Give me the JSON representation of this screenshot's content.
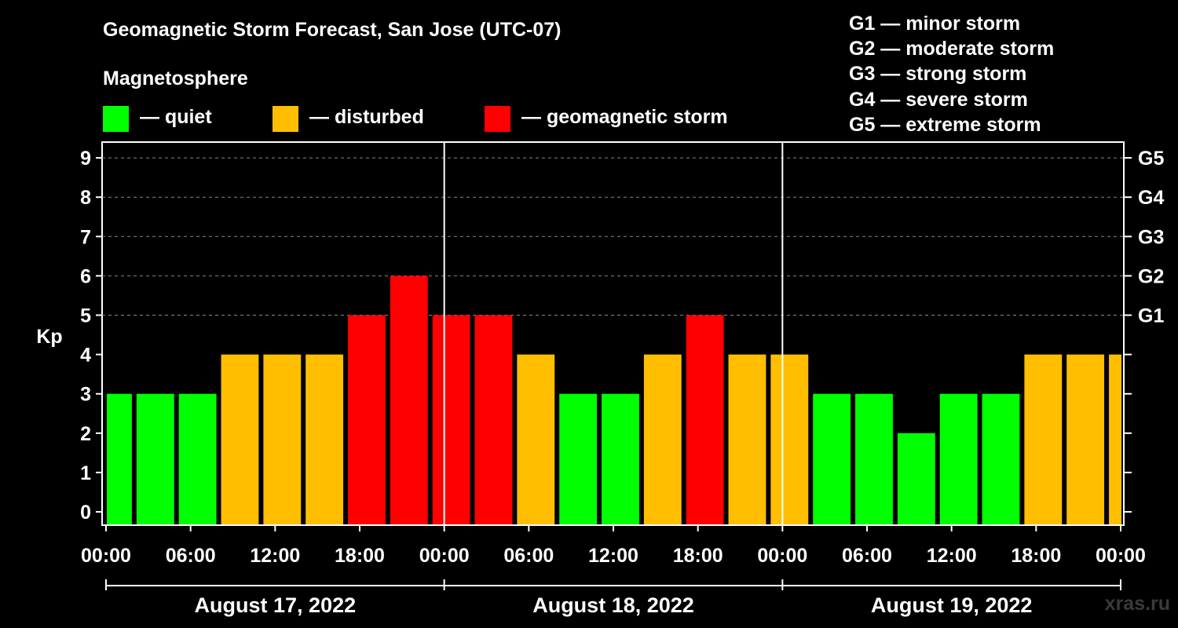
{
  "title": "Geomagnetic Storm Forecast, San Jose (UTC-07)",
  "subtitle": "Magnetosphere",
  "legend": [
    {
      "label": "— quiet",
      "color": "#00ff00"
    },
    {
      "label": "— disturbed",
      "color": "#ffbf00"
    },
    {
      "label": "— geomagnetic storm",
      "color": "#ff0000"
    }
  ],
  "storm_scale": [
    "G1 — minor storm",
    "G2 — moderate storm",
    "G3 — strong storm",
    "G4 — severe storm",
    "G5 — extreme storm"
  ],
  "watermark": "xras.ru",
  "colors": {
    "quiet": "#00ff00",
    "disturbed": "#ffbf00",
    "storm": "#ff0000",
    "background": "#000000",
    "axis": "#ffffff"
  },
  "chart_data": {
    "type": "bar",
    "ylabel": "Kp",
    "ylim": [
      0,
      9
    ],
    "y_ticks": [
      "0",
      "1",
      "2",
      "3",
      "4",
      "5",
      "6",
      "7",
      "8",
      "9"
    ],
    "right_ticks": [
      {
        "kp": 5,
        "label": "G1"
      },
      {
        "kp": 6,
        "label": "G2"
      },
      {
        "kp": 7,
        "label": "G3"
      },
      {
        "kp": 8,
        "label": "G4"
      },
      {
        "kp": 9,
        "label": "G5"
      }
    ],
    "x_tick_labels": [
      "00:00",
      "06:00",
      "12:00",
      "18:00",
      "00:00",
      "06:00",
      "12:00",
      "18:00",
      "00:00",
      "06:00",
      "12:00",
      "18:00",
      "00:00"
    ],
    "days": [
      "August 17, 2022",
      "August 18, 2022",
      "August 19, 2022"
    ],
    "grid": "horizontal dashed",
    "interval_hours": 3,
    "start_hour_offset": -1,
    "values": [
      3,
      3,
      3,
      4,
      4,
      4,
      5,
      6,
      5,
      5,
      4,
      3,
      3,
      4,
      5,
      4,
      4,
      3,
      3,
      2,
      3,
      3,
      4,
      4,
      4
    ],
    "categories": [
      "quiet",
      "quiet",
      "quiet",
      "disturbed",
      "disturbed",
      "disturbed",
      "storm",
      "storm",
      "storm",
      "storm",
      "disturbed",
      "quiet",
      "quiet",
      "disturbed",
      "storm",
      "disturbed",
      "disturbed",
      "quiet",
      "quiet",
      "quiet",
      "quiet",
      "quiet",
      "disturbed",
      "disturbed",
      "disturbed"
    ]
  }
}
